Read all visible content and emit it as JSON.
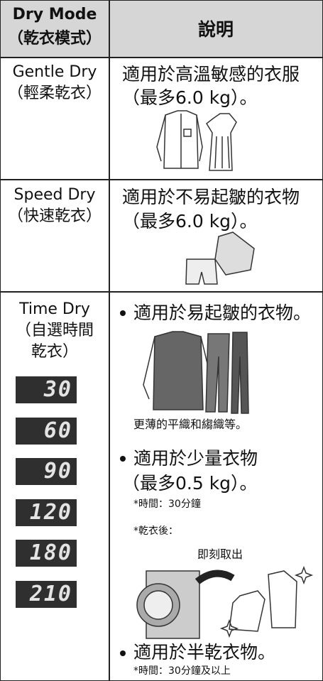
{
  "header": {
    "mode": [
      "Dry Mode",
      "（乾衣模式）"
    ],
    "description": "說明"
  },
  "rows": [
    {
      "mode": [
        "Gentle Dry",
        "（輕柔乾衣）"
      ],
      "description": [
        "適用於高溫敏感的衣服",
        "（最多6.0 kg）。"
      ]
    },
    {
      "mode": [
        "Speed Dry",
        "（快速乾衣）"
      ],
      "description": [
        "適用於不易起皺的衣物",
        "（最多6.0 kg）。"
      ]
    },
    {
      "mode": [
        "Time Dry",
        "（自選時間",
        "乾衣）"
      ],
      "displays": [
        "30",
        "60",
        "90",
        "120",
        "180",
        "210"
      ],
      "items": [
        {
          "text": [
            "適用於易起皺的衣物。"
          ],
          "notes": [
            "更薄的平織和縐織等。"
          ]
        },
        {
          "text": [
            "適用於少量衣物",
            "（最多0.5 kg）。"
          ],
          "notes": [
            "*時間：30分鐘",
            "*乾衣後："
          ],
          "caption": "即刻取出"
        },
        {
          "text": [
            "適用於半乾衣物。"
          ],
          "notes": [
            "*時間：30分鐘及以上"
          ]
        }
      ]
    }
  ]
}
